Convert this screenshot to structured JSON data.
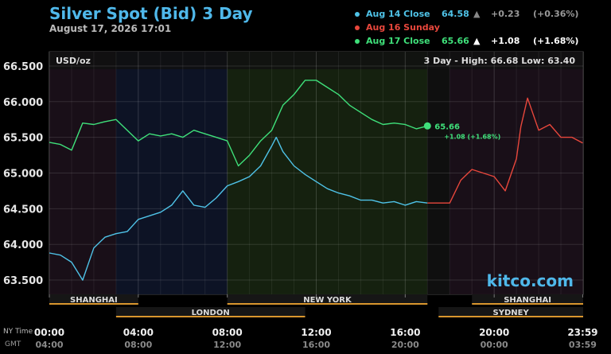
{
  "header": {
    "title": "Silver Spot (Bid) 3 Day",
    "subtitle": "August 17, 2026 17:01"
  },
  "legend": [
    {
      "label": "Aug 14 Close",
      "value": "64.58",
      "arrow": "▲",
      "change": "+0.23",
      "pct": "(+0.36%)",
      "color": "#4fc3e8",
      "dim": true
    },
    {
      "label": "Aug 16 Sunday",
      "value": "",
      "arrow": "",
      "change": "",
      "pct": "",
      "color": "#e8473c",
      "dim": false
    },
    {
      "label": "Aug 17 Close",
      "value": "65.66",
      "arrow": "▲",
      "change": "+1.08",
      "pct": "(+1.68%)",
      "color": "#3fe07a",
      "dim": false
    }
  ],
  "plot": {
    "unit_label": "USD/oz",
    "range_text": "3 Day - High: 66.68  Low: 63.40",
    "last_value_label": "65.66",
    "last_change_label": "+1.08 (+1.68%)",
    "watermark": "kitco.com"
  },
  "sessions": [
    {
      "name": "SHANGHAI",
      "start": 0,
      "end": 4
    },
    {
      "name": "LONDON",
      "start": 3,
      "end": 11.5
    },
    {
      "name": "NEW YORK",
      "start": 8,
      "end": 17
    },
    {
      "name": "SHANGHAI",
      "start": 19,
      "end": 24
    },
    {
      "name": "SYDNEY",
      "start": 17.5,
      "end": 24
    }
  ],
  "time_axis": {
    "ny_label": "NY Time",
    "gmt_label": "GMT",
    "ticks": [
      {
        "hour": 0,
        "ny": "00:00",
        "gmt": "04:00"
      },
      {
        "hour": 4,
        "ny": "04:00",
        "gmt": "08:00"
      },
      {
        "hour": 8,
        "ny": "08:00",
        "gmt": "12:00"
      },
      {
        "hour": 12,
        "ny": "12:00",
        "gmt": "16:00"
      },
      {
        "hour": 16,
        "ny": "16:00",
        "gmt": "20:00"
      },
      {
        "hour": 20,
        "ny": "20:00",
        "gmt": "00:00"
      },
      {
        "hour": 23.98,
        "ny": "23:59",
        "gmt": "03:59"
      }
    ]
  },
  "colors": {
    "aug14": "#4fc3e8",
    "aug16": "#e8473c",
    "aug17": "#3fe07a",
    "session_bar": "#d9962e",
    "title": "#4fb8ea"
  },
  "chart_data": {
    "type": "line",
    "xlabel": "NY Time",
    "ylabel": "USD/oz",
    "xlim": [
      0,
      24
    ],
    "ylim": [
      63.3,
      66.7
    ],
    "y_ticks": [
      "63.500",
      "64.000",
      "64.500",
      "65.000",
      "65.500",
      "66.000",
      "66.500"
    ],
    "series": [
      {
        "name": "Aug 14 Close",
        "x": [
          0,
          0.5,
          1,
          1.5,
          2,
          2.5,
          3,
          3.5,
          4,
          4.5,
          5,
          5.5,
          6,
          6.5,
          7,
          7.5,
          8,
          8.5,
          9,
          9.5,
          10,
          10.2,
          10.5,
          11,
          11.5,
          12,
          12.5,
          13,
          13.5,
          14,
          14.5,
          15,
          15.5,
          16,
          16.5,
          17
        ],
        "y": [
          63.88,
          63.85,
          63.75,
          63.5,
          63.95,
          64.1,
          64.15,
          64.18,
          64.35,
          64.4,
          64.45,
          64.55,
          64.75,
          64.55,
          64.52,
          64.65,
          64.82,
          64.88,
          64.95,
          65.1,
          65.38,
          65.5,
          65.3,
          65.1,
          64.98,
          64.88,
          64.78,
          64.72,
          64.68,
          64.62,
          64.62,
          64.58,
          64.6,
          64.55,
          64.6,
          64.58
        ]
      },
      {
        "name": "Aug 16 Sunday",
        "x": [
          17,
          18,
          18.5,
          19,
          19.5,
          20,
          20.5,
          21,
          21.2,
          21.5,
          22,
          22.5,
          23,
          23.5,
          23.98
        ],
        "y": [
          64.58,
          64.58,
          64.9,
          65.05,
          65.0,
          64.95,
          64.75,
          65.2,
          65.65,
          66.05,
          65.6,
          65.68,
          65.5,
          65.5,
          65.42
        ]
      },
      {
        "name": "Aug 17 Close",
        "x": [
          0,
          0.5,
          1,
          1.5,
          2,
          2.5,
          3,
          3.5,
          4,
          4.5,
          5,
          5.5,
          6,
          6.5,
          7,
          7.5,
          8,
          8.5,
          9,
          9.5,
          10,
          10.5,
          11,
          11.5,
          12,
          12.5,
          13,
          13.5,
          14,
          14.5,
          15,
          15.5,
          16,
          16.5,
          17
        ],
        "y": [
          65.43,
          65.4,
          65.32,
          65.7,
          65.68,
          65.72,
          65.75,
          65.6,
          65.45,
          65.55,
          65.52,
          65.55,
          65.5,
          65.6,
          65.55,
          65.5,
          65.45,
          65.1,
          65.25,
          65.45,
          65.6,
          65.95,
          66.1,
          66.3,
          66.3,
          66.2,
          66.1,
          65.95,
          65.85,
          65.75,
          65.68,
          65.7,
          65.68,
          65.62,
          65.66
        ]
      }
    ]
  }
}
